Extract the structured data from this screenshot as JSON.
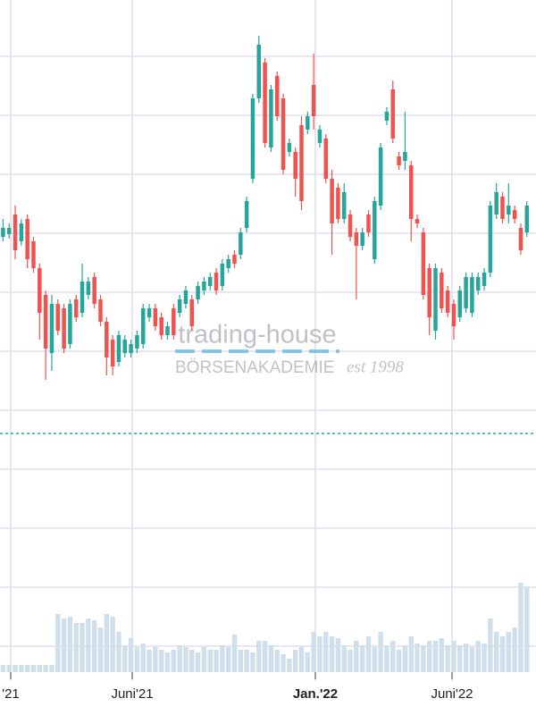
{
  "chart_data": {
    "type": "candlestick",
    "xlim": [
      0,
      88
    ],
    "xticks": [
      {
        "value": 1.76,
        "label": "'21"
      },
      {
        "value": 21.71,
        "label": "Juni'21"
      },
      {
        "value": 51.77,
        "label": "Jan.'22"
      },
      {
        "value": 74.21,
        "label": "Juni'22"
      }
    ],
    "ylim": [
      -11,
      789
    ],
    "yticks": [
      66,
      132,
      198,
      264,
      330,
      396,
      462,
      528,
      594,
      660,
      726
    ],
    "grid": true,
    "up_color": "#26a69a",
    "down_color": "#ef5350",
    "ohlc": [
      [
        524,
        544,
        519,
        534
      ],
      [
        527,
        539,
        522,
        534
      ],
      [
        549,
        559,
        499,
        509
      ],
      [
        519,
        544,
        514,
        539
      ],
      [
        544,
        549,
        489,
        499
      ],
      [
        519,
        524,
        484,
        489
      ],
      [
        489,
        494,
        409,
        439
      ],
      [
        459,
        464,
        364,
        399
      ],
      [
        394,
        459,
        374,
        449
      ],
      [
        449,
        454,
        414,
        419
      ],
      [
        444,
        449,
        394,
        399
      ],
      [
        404,
        454,
        399,
        449
      ],
      [
        454,
        459,
        429,
        434
      ],
      [
        439,
        494,
        434,
        474
      ],
      [
        459,
        479,
        454,
        474
      ],
      [
        479,
        484,
        444,
        449
      ],
      [
        454,
        459,
        424,
        429
      ],
      [
        429,
        434,
        369,
        389
      ],
      [
        409,
        414,
        369,
        379
      ],
      [
        384,
        419,
        379,
        414
      ],
      [
        394,
        414,
        389,
        409
      ],
      [
        394,
        409,
        389,
        404
      ],
      [
        399,
        419,
        394,
        414
      ],
      [
        404,
        449,
        399,
        444
      ],
      [
        434,
        449,
        429,
        444
      ],
      [
        444,
        449,
        419,
        424
      ],
      [
        434,
        439,
        409,
        414
      ],
      [
        414,
        429,
        409,
        424
      ],
      [
        444,
        449,
        409,
        414
      ],
      [
        439,
        459,
        434,
        454
      ],
      [
        449,
        469,
        444,
        464
      ],
      [
        454,
        459,
        419,
        424
      ],
      [
        454,
        474,
        449,
        469
      ],
      [
        464,
        479,
        459,
        474
      ],
      [
        469,
        484,
        464,
        479
      ],
      [
        484,
        489,
        459,
        464
      ],
      [
        469,
        499,
        464,
        494
      ],
      [
        489,
        504,
        484,
        499
      ],
      [
        504,
        509,
        489,
        494
      ],
      [
        504,
        534,
        499,
        529
      ],
      [
        534,
        569,
        529,
        564
      ],
      [
        589,
        684,
        584,
        679
      ],
      [
        679,
        749,
        674,
        739
      ],
      [
        719,
        724,
        624,
        629
      ],
      [
        624,
        694,
        619,
        689
      ],
      [
        704,
        709,
        654,
        659
      ],
      [
        679,
        684,
        594,
        599
      ],
      [
        619,
        634,
        614,
        629
      ],
      [
        619,
        624,
        569,
        589
      ],
      [
        649,
        659,
        554,
        564
      ],
      [
        644,
        664,
        639,
        659
      ],
      [
        694,
        729,
        644,
        659
      ],
      [
        629,
        649,
        624,
        644
      ],
      [
        634,
        639,
        584,
        589
      ],
      [
        589,
        599,
        504,
        539
      ],
      [
        579,
        584,
        539,
        544
      ],
      [
        544,
        584,
        539,
        574
      ],
      [
        549,
        554,
        519,
        524
      ],
      [
        529,
        534,
        454,
        514
      ],
      [
        514,
        534,
        509,
        529
      ],
      [
        549,
        554,
        524,
        529
      ],
      [
        499,
        569,
        494,
        564
      ],
      [
        559,
        629,
        554,
        624
      ],
      [
        654,
        669,
        649,
        664
      ],
      [
        689,
        699,
        629,
        634
      ],
      [
        614,
        619,
        599,
        604
      ],
      [
        609,
        664,
        599,
        619
      ],
      [
        604,
        609,
        519,
        544
      ],
      [
        544,
        549,
        534,
        539
      ],
      [
        529,
        534,
        454,
        459
      ],
      [
        489,
        494,
        414,
        434
      ],
      [
        419,
        494,
        409,
        489
      ],
      [
        484,
        489,
        439,
        444
      ],
      [
        464,
        469,
        434,
        439
      ],
      [
        449,
        454,
        409,
        424
      ],
      [
        434,
        469,
        429,
        464
      ],
      [
        444,
        484,
        439,
        479
      ],
      [
        439,
        484,
        434,
        479
      ],
      [
        464,
        484,
        459,
        479
      ],
      [
        469,
        489,
        464,
        484
      ],
      [
        484,
        564,
        479,
        559
      ],
      [
        549,
        584,
        544,
        574
      ],
      [
        569,
        574,
        539,
        544
      ],
      [
        549,
        584,
        539,
        559
      ],
      [
        554,
        559,
        539,
        544
      ],
      [
        534,
        539,
        504,
        509
      ],
      [
        529,
        564,
        524,
        559
      ]
    ],
    "volume": [
      8,
      8,
      8,
      8,
      8,
      8,
      8,
      8,
      8,
      65,
      60,
      62,
      55,
      55,
      60,
      58,
      50,
      65,
      62,
      45,
      30,
      38,
      28,
      32,
      25,
      28,
      25,
      22,
      25,
      30,
      28,
      25,
      22,
      28,
      25,
      25,
      30,
      28,
      42,
      25,
      25,
      22,
      35,
      35,
      30,
      25,
      20,
      15,
      25,
      28,
      22,
      45,
      40,
      45,
      40,
      38,
      30,
      25,
      35,
      30,
      40,
      28,
      45,
      30,
      35,
      25,
      30,
      40,
      32,
      30,
      35,
      35,
      38,
      30,
      35,
      30,
      32,
      28,
      35,
      32,
      60,
      45,
      40,
      45,
      50,
      100,
      95
    ],
    "y2lim": [
      0,
      100
    ],
    "volume_color": "#cfe0ec",
    "price_line": 304,
    "price_line_color": "#26a69a",
    "watermark": {
      "name": "trading-house",
      "subtitle": "BÖRSENAKADEMIE",
      "tagline": "est 1998"
    }
  }
}
